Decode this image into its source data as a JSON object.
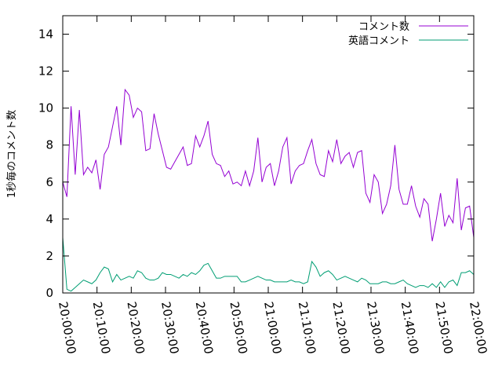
{
  "chart_data": {
    "type": "line",
    "title": "",
    "xlabel": "",
    "ylabel": "1秒毎のコメント数",
    "x_range": [
      "20:00:00",
      "22:00:00"
    ],
    "x_ticks": [
      "20:00:00",
      "20:10:00",
      "20:20:00",
      "20:30:00",
      "20:40:00",
      "20:50:00",
      "21:00:00",
      "21:10:00",
      "21:20:00",
      "21:30:00",
      "21:40:00",
      "21:50:00",
      "22:00:00"
    ],
    "ylim": [
      0,
      15
    ],
    "y_ticks": [
      "0",
      "2",
      "4",
      "6",
      "8",
      "10",
      "12",
      "14"
    ],
    "grid": false,
    "legend_position": "top-right",
    "sample_interval_seconds": 60,
    "series": [
      {
        "name": "コメント数",
        "color": "#9400d3",
        "values": [
          6.0,
          5.2,
          10.1,
          6.4,
          9.9,
          6.4,
          6.8,
          6.5,
          7.2,
          5.6,
          7.5,
          7.9,
          9.0,
          10.1,
          8.0,
          11.0,
          10.7,
          9.5,
          10.0,
          9.8,
          7.7,
          7.8,
          9.7,
          8.6,
          7.7,
          6.8,
          6.7,
          7.1,
          7.5,
          7.9,
          6.9,
          7.0,
          8.5,
          7.9,
          8.5,
          9.3,
          7.5,
          7.0,
          6.9,
          6.3,
          6.6,
          5.9,
          6.0,
          5.8,
          6.6,
          5.8,
          6.6,
          8.4,
          6.0,
          6.8,
          7.0,
          5.8,
          6.6,
          7.9,
          8.4,
          5.9,
          6.6,
          6.9,
          7.0,
          7.7,
          8.3,
          7.0,
          6.4,
          6.3,
          7.7,
          7.1,
          8.3,
          7.0,
          7.4,
          7.6,
          6.8,
          7.6,
          7.7,
          5.4,
          4.9,
          6.4,
          6.0,
          4.3,
          4.8,
          5.8,
          8.0,
          5.6,
          4.8,
          4.8,
          5.8,
          4.7,
          4.1,
          5.1,
          4.8,
          2.8,
          4.0,
          5.4,
          3.6,
          4.2,
          3.8,
          6.2,
          3.4,
          4.6,
          4.7,
          3.0
        ]
      },
      {
        "name": "英語コメント",
        "color": "#009e73",
        "values": [
          3.0,
          0.2,
          0.1,
          0.3,
          0.5,
          0.7,
          0.6,
          0.5,
          0.7,
          1.1,
          1.4,
          1.3,
          0.6,
          1.0,
          0.7,
          0.8,
          0.9,
          0.8,
          1.2,
          1.1,
          0.8,
          0.7,
          0.7,
          0.8,
          1.1,
          1.0,
          1.0,
          0.9,
          0.8,
          1.0,
          0.9,
          1.1,
          1.0,
          1.2,
          1.5,
          1.6,
          1.2,
          0.8,
          0.8,
          0.9,
          0.9,
          0.9,
          0.9,
          0.6,
          0.6,
          0.7,
          0.8,
          0.9,
          0.8,
          0.7,
          0.7,
          0.6,
          0.6,
          0.6,
          0.6,
          0.7,
          0.6,
          0.6,
          0.5,
          0.6,
          1.7,
          1.4,
          0.9,
          1.1,
          1.2,
          1.0,
          0.7,
          0.8,
          0.9,
          0.8,
          0.7,
          0.6,
          0.8,
          0.7,
          0.5,
          0.5,
          0.5,
          0.6,
          0.6,
          0.5,
          0.5,
          0.6,
          0.7,
          0.5,
          0.4,
          0.3,
          0.4,
          0.4,
          0.3,
          0.5,
          0.3,
          0.6,
          0.3,
          0.6,
          0.7,
          0.4,
          1.1,
          1.1,
          1.2,
          1.0
        ]
      }
    ]
  }
}
